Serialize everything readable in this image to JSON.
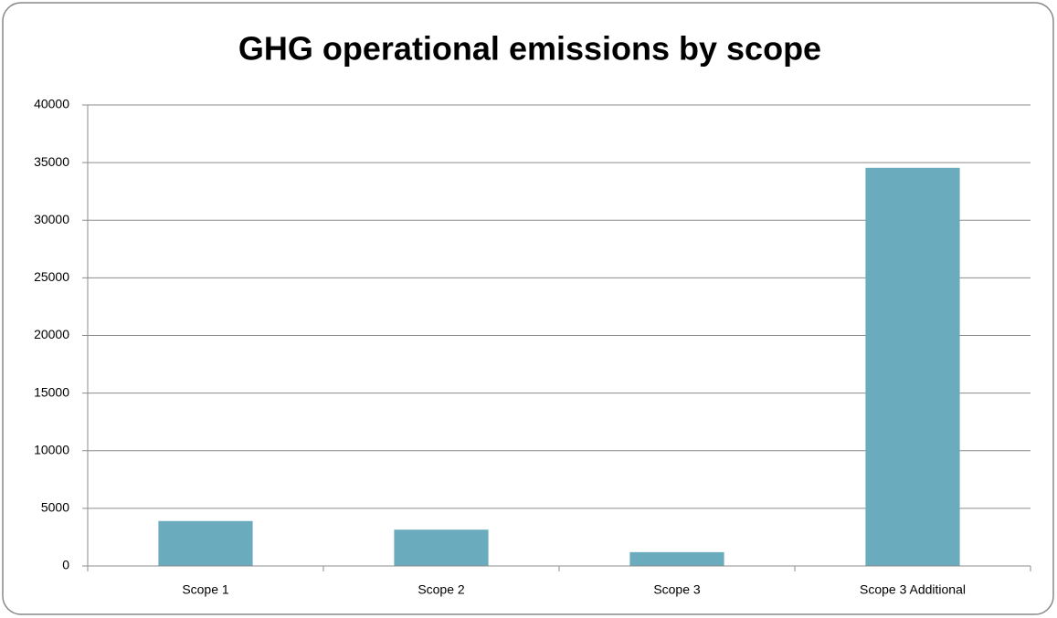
{
  "chart_data": {
    "type": "bar",
    "title": "GHG operational emissions by scope",
    "categories": [
      "Scope 1",
      "Scope 2",
      "Scope 3",
      "Scope 3 Additional"
    ],
    "values": [
      3900,
      3150,
      1200,
      34550
    ],
    "color": "#6aabbd",
    "ylim": [
      0,
      40000
    ],
    "yticks": [
      0,
      5000,
      10000,
      15000,
      20000,
      25000,
      30000,
      35000,
      40000
    ],
    "grid": true
  }
}
